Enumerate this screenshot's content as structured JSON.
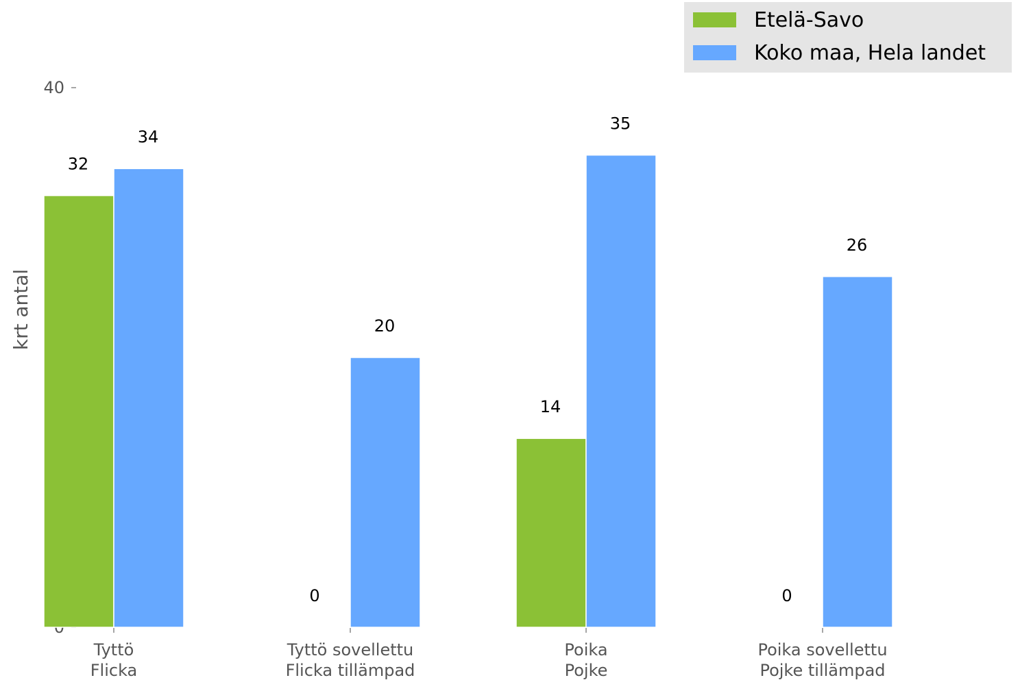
{
  "chart_data": {
    "type": "bar",
    "categories": [
      [
        "Tyttö",
        "Flicka"
      ],
      [
        "Tyttö sovellettu",
        "Flicka tillämpad"
      ],
      [
        "Poika",
        "Pojke"
      ],
      [
        "Poika sovellettu",
        "Pojke tillämpad"
      ]
    ],
    "series": [
      {
        "name": "Etelä-Savo",
        "color": "#8bc136",
        "values": [
          32,
          0,
          14,
          0
        ]
      },
      {
        "name": "Koko maa, Hela landet",
        "color": "#66a8ff",
        "values": [
          34,
          20,
          35,
          26
        ]
      }
    ],
    "title": "",
    "xlabel": "",
    "ylabel": "krt antal",
    "ylim": [
      0,
      40
    ],
    "yticks": [
      0,
      10,
      20,
      30,
      40
    ],
    "grid": false,
    "legend_position": "top-right"
  }
}
